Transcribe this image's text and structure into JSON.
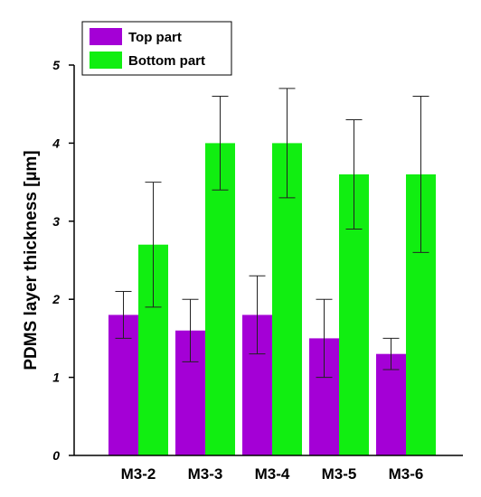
{
  "chart_data": {
    "type": "bar",
    "categories": [
      "M3-2",
      "M3-3",
      "M3-4",
      "M3-5",
      "M3-6"
    ],
    "series": [
      {
        "name": "Top part",
        "color": "#a400d6",
        "values": [
          1.8,
          1.6,
          1.8,
          1.5,
          1.3
        ],
        "error_low": [
          1.5,
          1.2,
          1.3,
          1.0,
          1.1
        ],
        "error_high": [
          2.1,
          2.0,
          2.3,
          2.0,
          1.5
        ]
      },
      {
        "name": "Bottom part",
        "color": "#11ee11",
        "values": [
          2.7,
          4.0,
          4.0,
          3.6,
          3.6
        ],
        "error_low": [
          1.9,
          3.4,
          3.3,
          2.9,
          2.6
        ],
        "error_high": [
          3.5,
          4.6,
          4.7,
          4.3,
          4.6
        ]
      }
    ],
    "ylabel": "PDMS layer thickness [µm]",
    "xlabel": "",
    "ylim": [
      0,
      5
    ],
    "yticks": [
      "0",
      "1",
      "2",
      "3",
      "4",
      "5"
    ],
    "grid": false,
    "legend_position": "top-left"
  }
}
